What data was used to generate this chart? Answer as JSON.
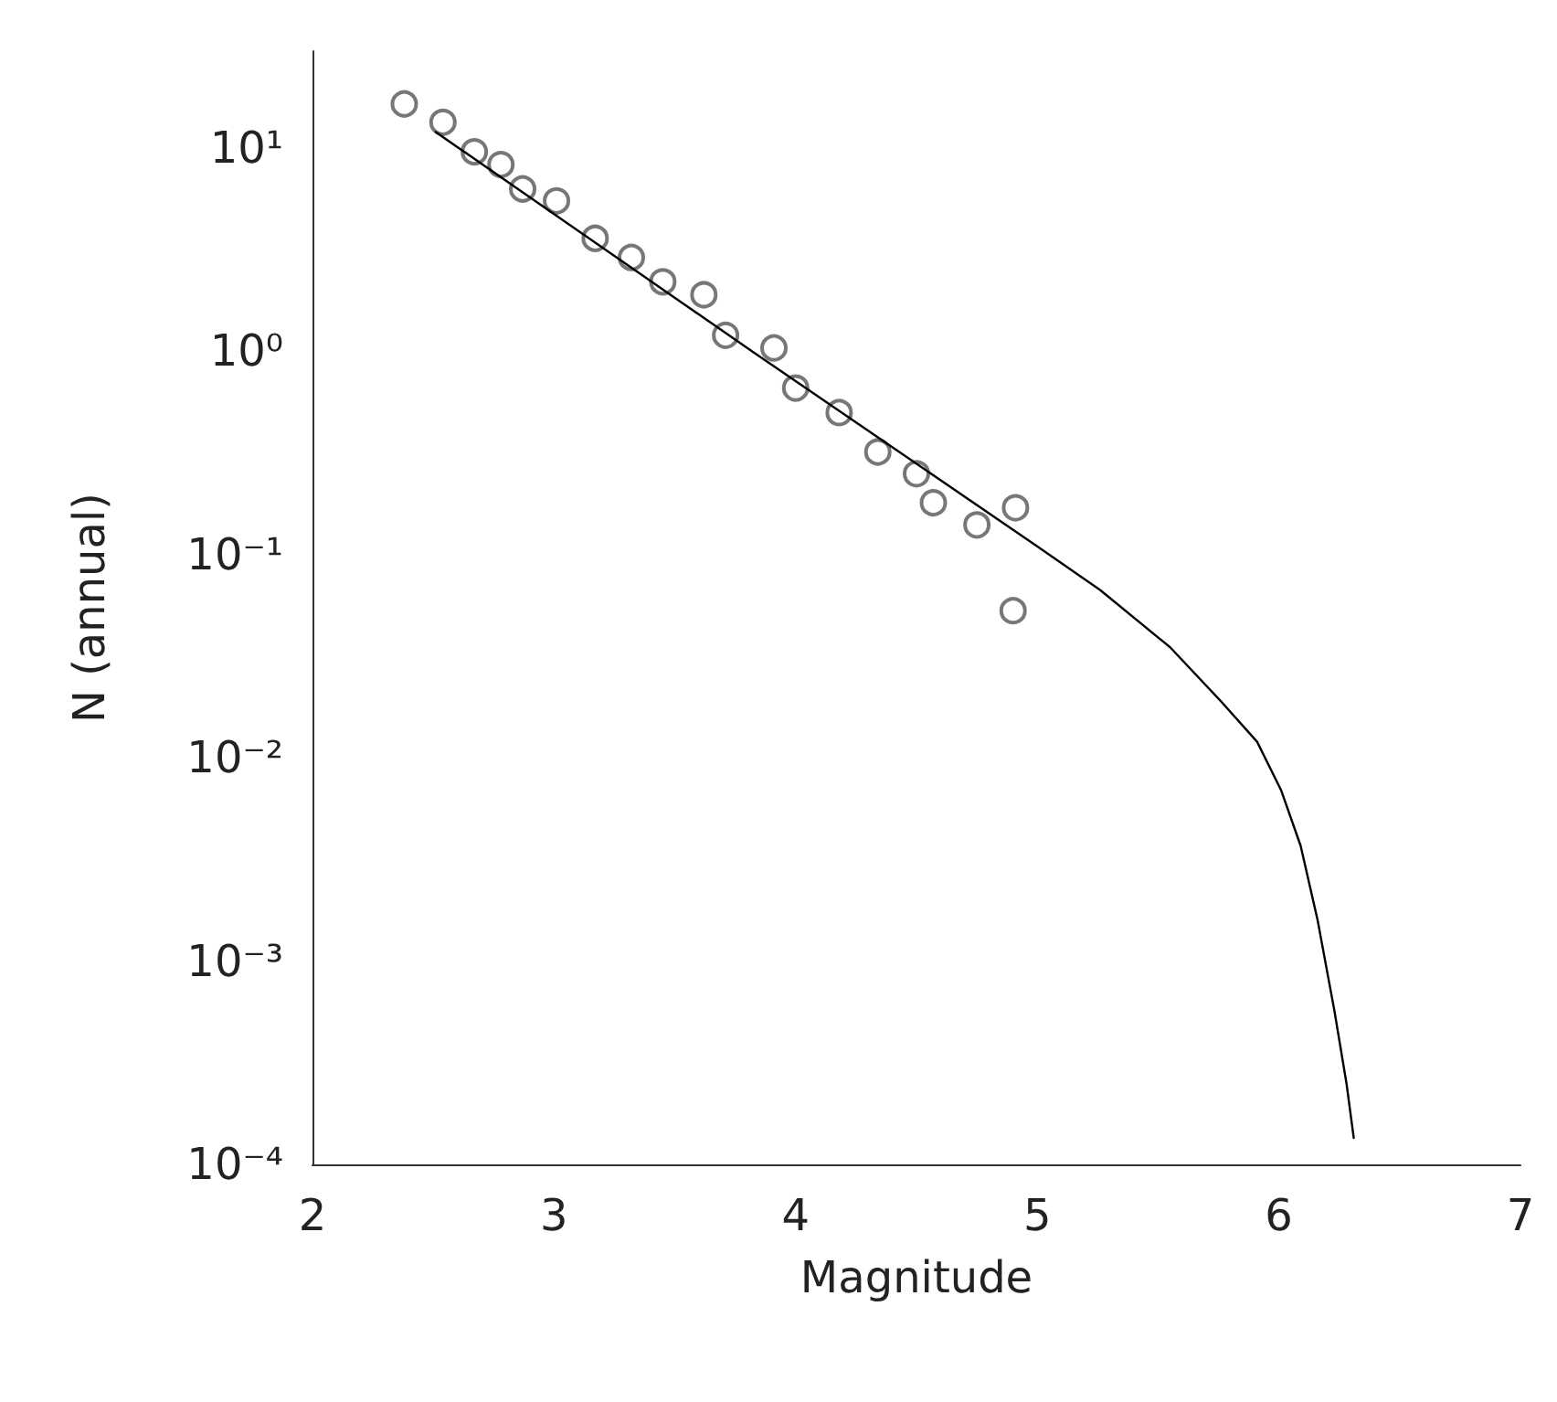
{
  "chart_data": {
    "type": "scatter",
    "xlabel": "Magnitude",
    "ylabel": "N (annual)",
    "log": "y",
    "grid": false,
    "xlim": [
      2,
      7
    ],
    "xticks": [
      2,
      3,
      4,
      5,
      6,
      7
    ],
    "ylim": [
      0.0001,
      30
    ],
    "yticks": [
      {
        "value": 10,
        "label": "10¹"
      },
      {
        "value": 1,
        "label": "10⁰"
      },
      {
        "value": 0.1,
        "label": "10⁻¹"
      },
      {
        "value": 0.01,
        "label": "10⁻²"
      },
      {
        "value": 0.001,
        "label": "10⁻³"
      },
      {
        "value": 0.0001,
        "label": "10⁻⁴"
      }
    ],
    "series": [
      {
        "marker": "circle",
        "color": "#555555",
        "x": [
          2.38,
          2.54,
          2.67,
          2.78,
          2.87,
          3.01,
          3.17,
          3.32,
          3.45,
          3.62,
          3.71,
          3.91,
          4.0,
          4.18,
          4.34,
          4.5,
          4.57,
          4.75,
          4.91,
          4.9
        ],
        "values": [
          16.5,
          13.4,
          9.6,
          8.3,
          6.3,
          5.5,
          3.6,
          2.9,
          2.2,
          1.9,
          1.2,
          1.04,
          0.66,
          0.5,
          0.32,
          0.25,
          0.18,
          0.14,
          0.17,
          0.053
        ]
      },
      {
        "type": "line",
        "marker": "none",
        "line_style": "solid",
        "color": "#000000",
        "x": [
          2.51,
          3.82,
          4.99,
          5.26,
          5.55,
          5.76,
          5.91,
          6.01,
          6.09,
          6.16,
          6.23,
          6.28,
          6.31
        ],
        "values": [
          12.0,
          1.0,
          0.112,
          0.067,
          0.035,
          0.019,
          0.012,
          0.0069,
          0.0037,
          0.0016,
          0.00057,
          0.00025,
          0.000135
        ]
      }
    ]
  }
}
